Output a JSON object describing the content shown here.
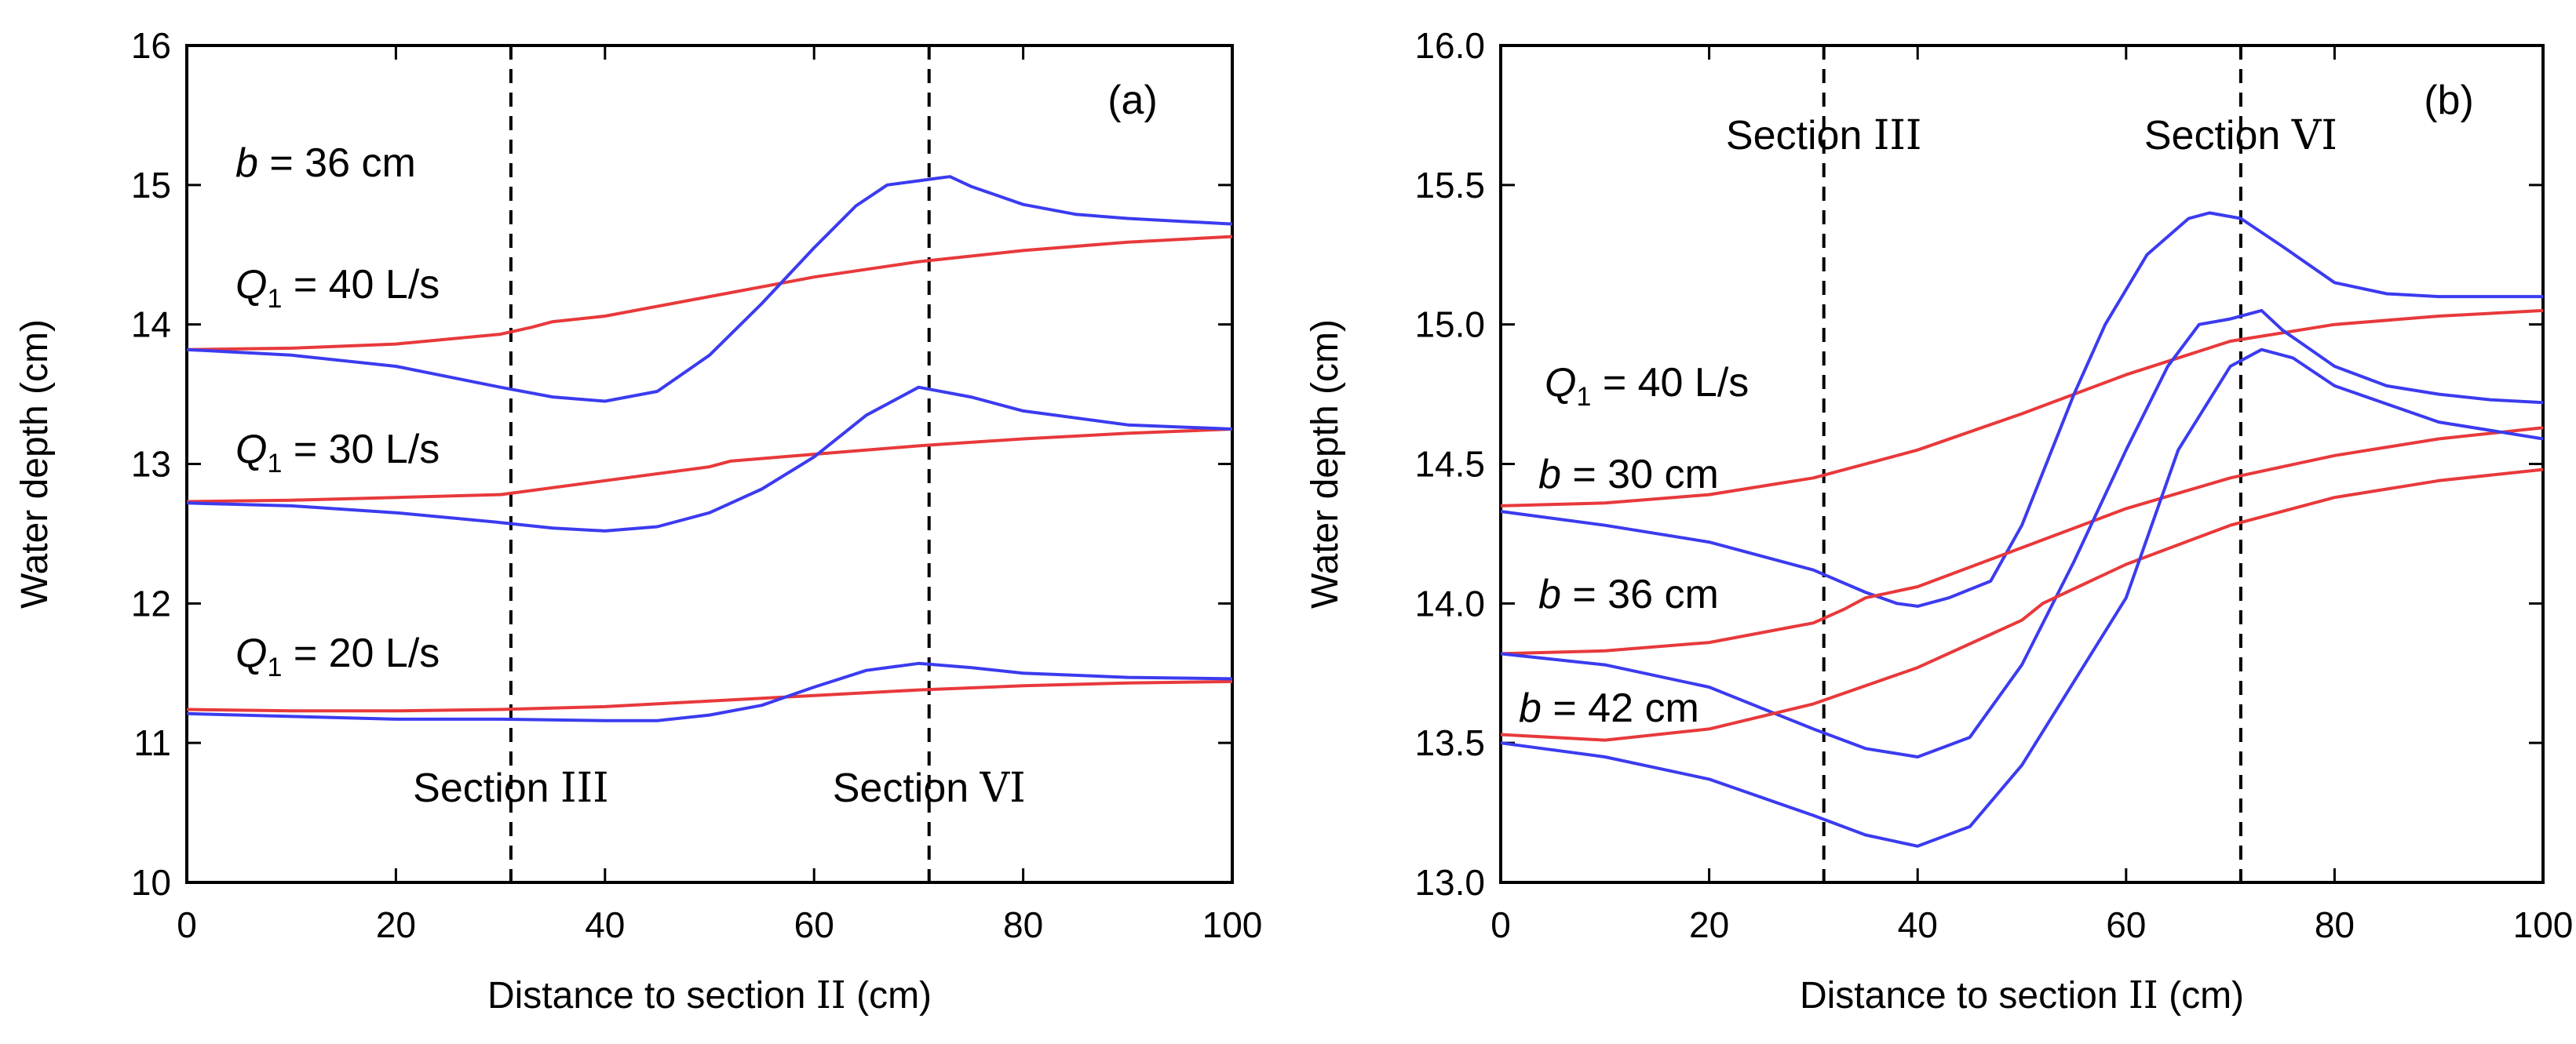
{
  "chart_data": [
    {
      "panel": "a",
      "type": "line",
      "panel_label": "(a)",
      "xlabel_prefix": "Distance to section ",
      "xlabel_roman": "II",
      "xlabel_unit": " (cm)",
      "ylabel": "Water depth (cm)",
      "xlim": [
        0,
        100
      ],
      "ylim": [
        10,
        16
      ],
      "xticks": [
        0,
        20,
        40,
        60,
        80,
        100
      ],
      "yticks": [
        10,
        11,
        12,
        13,
        14,
        15,
        16
      ],
      "ytick_decimals": 0,
      "vlines": [
        {
          "x": 31,
          "label_prefix": "Section ",
          "label_roman": "III"
        },
        {
          "x": 71,
          "label_prefix": "Section ",
          "label_roman": "VI"
        }
      ],
      "annotations": [
        {
          "var": "b",
          "sub": "",
          "text": " = 36 cm"
        },
        {
          "var": "Q",
          "sub": "1",
          "text": " = 40 L/s"
        },
        {
          "var": "Q",
          "sub": "1",
          "text": " = 30 L/s"
        },
        {
          "var": "Q",
          "sub": "1",
          "text": " = 20 L/s"
        }
      ],
      "series": [
        {
          "name": "red Q1=40",
          "color": "#e8393b",
          "points": [
            [
              0,
              13.82
            ],
            [
              10,
              13.83
            ],
            [
              20,
              13.86
            ],
            [
              30,
              13.93
            ],
            [
              33,
              13.98
            ],
            [
              35,
              14.02
            ],
            [
              40,
              14.06
            ],
            [
              50,
              14.2
            ],
            [
              60,
              14.34
            ],
            [
              70,
              14.45
            ],
            [
              80,
              14.53
            ],
            [
              90,
              14.59
            ],
            [
              100,
              14.63
            ]
          ]
        },
        {
          "name": "blue Q1=40",
          "color": "#3b3bf0",
          "points": [
            [
              0,
              13.82
            ],
            [
              10,
              13.78
            ],
            [
              20,
              13.7
            ],
            [
              30,
              13.55
            ],
            [
              35,
              13.48
            ],
            [
              40,
              13.45
            ],
            [
              45,
              13.52
            ],
            [
              50,
              13.78
            ],
            [
              55,
              14.15
            ],
            [
              60,
              14.55
            ],
            [
              64,
              14.85
            ],
            [
              67,
              15.0
            ],
            [
              70,
              15.03
            ],
            [
              72,
              15.05
            ],
            [
              73,
              15.06
            ],
            [
              75,
              14.99
            ],
            [
              80,
              14.86
            ],
            [
              85,
              14.79
            ],
            [
              90,
              14.76
            ],
            [
              95,
              14.74
            ],
            [
              100,
              14.72
            ]
          ]
        },
        {
          "name": "red Q1=30",
          "color": "#e8393b",
          "points": [
            [
              0,
              12.73
            ],
            [
              10,
              12.74
            ],
            [
              20,
              12.76
            ],
            [
              30,
              12.78
            ],
            [
              40,
              12.88
            ],
            [
              50,
              12.98
            ],
            [
              52,
              13.02
            ],
            [
              60,
              13.07
            ],
            [
              70,
              13.13
            ],
            [
              80,
              13.18
            ],
            [
              90,
              13.22
            ],
            [
              100,
              13.25
            ]
          ]
        },
        {
          "name": "blue Q1=30",
          "color": "#3b3bf0",
          "points": [
            [
              0,
              12.72
            ],
            [
              10,
              12.7
            ],
            [
              20,
              12.65
            ],
            [
              30,
              12.58
            ],
            [
              35,
              12.54
            ],
            [
              40,
              12.52
            ],
            [
              45,
              12.55
            ],
            [
              50,
              12.65
            ],
            [
              55,
              12.82
            ],
            [
              60,
              13.05
            ],
            [
              65,
              13.35
            ],
            [
              70,
              13.55
            ],
            [
              75,
              13.48
            ],
            [
              80,
              13.38
            ],
            [
              90,
              13.28
            ],
            [
              100,
              13.25
            ]
          ]
        },
        {
          "name": "red Q1=20",
          "color": "#e8393b",
          "points": [
            [
              0,
              11.24
            ],
            [
              10,
              11.23
            ],
            [
              20,
              11.23
            ],
            [
              30,
              11.24
            ],
            [
              40,
              11.26
            ],
            [
              50,
              11.3
            ],
            [
              60,
              11.34
            ],
            [
              70,
              11.38
            ],
            [
              80,
              11.41
            ],
            [
              90,
              11.43
            ],
            [
              100,
              11.44
            ]
          ]
        },
        {
          "name": "blue Q1=20",
          "color": "#3b3bf0",
          "points": [
            [
              0,
              11.21
            ],
            [
              10,
              11.19
            ],
            [
              20,
              11.17
            ],
            [
              30,
              11.17
            ],
            [
              40,
              11.16
            ],
            [
              45,
              11.16
            ],
            [
              50,
              11.2
            ],
            [
              55,
              11.27
            ],
            [
              60,
              11.4
            ],
            [
              65,
              11.52
            ],
            [
              70,
              11.57
            ],
            [
              75,
              11.54
            ],
            [
              80,
              11.5
            ],
            [
              90,
              11.47
            ],
            [
              100,
              11.46
            ]
          ]
        }
      ]
    },
    {
      "panel": "b",
      "type": "line",
      "panel_label": "(b)",
      "xlabel_prefix": "Distance to section ",
      "xlabel_roman": "II",
      "xlabel_unit": " (cm)",
      "ylabel": "Water depth (cm)",
      "xlim": [
        0,
        100
      ],
      "ylim": [
        13.0,
        16.0
      ],
      "xticks": [
        0,
        20,
        40,
        60,
        80,
        100
      ],
      "yticks": [
        13.0,
        13.5,
        14.0,
        14.5,
        15.0,
        15.5,
        16.0
      ],
      "ytick_decimals": 1,
      "vlines": [
        {
          "x": 31,
          "label_prefix": "Section ",
          "label_roman": "III"
        },
        {
          "x": 71,
          "label_prefix": "Section ",
          "label_roman": "VI"
        }
      ],
      "annotations": [
        {
          "var": "Q",
          "sub": "1",
          "text": " = 40 L/s"
        },
        {
          "var": "b",
          "sub": "",
          "text": " = 30 cm"
        },
        {
          "var": "b",
          "sub": "",
          "text": " = 36 cm"
        },
        {
          "var": "b",
          "sub": "",
          "text": " = 42 cm"
        }
      ],
      "series": [
        {
          "name": "red b=30",
          "color": "#e8393b",
          "points": [
            [
              0,
              14.35
            ],
            [
              10,
              14.36
            ],
            [
              20,
              14.39
            ],
            [
              30,
              14.45
            ],
            [
              40,
              14.55
            ],
            [
              50,
              14.68
            ],
            [
              60,
              14.82
            ],
            [
              70,
              14.94
            ],
            [
              80,
              15.0
            ],
            [
              90,
              15.03
            ],
            [
              100,
              15.05
            ]
          ]
        },
        {
          "name": "blue b=30",
          "color": "#3b3bf0",
          "points": [
            [
              0,
              14.33
            ],
            [
              10,
              14.28
            ],
            [
              20,
              14.22
            ],
            [
              30,
              14.12
            ],
            [
              35,
              14.04
            ],
            [
              38,
              14.0
            ],
            [
              40,
              13.99
            ],
            [
              43,
              14.02
            ],
            [
              47,
              14.08
            ],
            [
              50,
              14.28
            ],
            [
              55,
              14.75
            ],
            [
              58,
              15.0
            ],
            [
              62,
              15.25
            ],
            [
              66,
              15.38
            ],
            [
              68,
              15.4
            ],
            [
              71,
              15.38
            ],
            [
              75,
              15.28
            ],
            [
              80,
              15.15
            ],
            [
              85,
              15.11
            ],
            [
              90,
              15.1
            ],
            [
              100,
              15.1
            ]
          ]
        },
        {
          "name": "red b=36",
          "color": "#e8393b",
          "points": [
            [
              0,
              13.82
            ],
            [
              10,
              13.83
            ],
            [
              20,
              13.86
            ],
            [
              30,
              13.93
            ],
            [
              33,
              13.98
            ],
            [
              35,
              14.02
            ],
            [
              40,
              14.06
            ],
            [
              50,
              14.2
            ],
            [
              60,
              14.34
            ],
            [
              70,
              14.45
            ],
            [
              80,
              14.53
            ],
            [
              90,
              14.59
            ],
            [
              100,
              14.63
            ]
          ]
        },
        {
          "name": "blue b=36",
          "color": "#3b3bf0",
          "points": [
            [
              0,
              13.82
            ],
            [
              10,
              13.78
            ],
            [
              20,
              13.7
            ],
            [
              30,
              13.55
            ],
            [
              35,
              13.48
            ],
            [
              40,
              13.45
            ],
            [
              45,
              13.52
            ],
            [
              50,
              13.78
            ],
            [
              55,
              14.15
            ],
            [
              60,
              14.55
            ],
            [
              64,
              14.85
            ],
            [
              67,
              15.0
            ],
            [
              70,
              15.02
            ],
            [
              72,
              15.04
            ],
            [
              73,
              15.05
            ],
            [
              75,
              14.98
            ],
            [
              80,
              14.85
            ],
            [
              85,
              14.78
            ],
            [
              90,
              14.75
            ],
            [
              95,
              14.73
            ],
            [
              100,
              14.72
            ]
          ]
        },
        {
          "name": "red b=42",
          "color": "#e8393b",
          "points": [
            [
              0,
              13.53
            ],
            [
              10,
              13.51
            ],
            [
              20,
              13.55
            ],
            [
              30,
              13.64
            ],
            [
              40,
              13.77
            ],
            [
              50,
              13.94
            ],
            [
              52,
              14.0
            ],
            [
              60,
              14.14
            ],
            [
              70,
              14.28
            ],
            [
              80,
              14.38
            ],
            [
              90,
              14.44
            ],
            [
              100,
              14.48
            ]
          ]
        },
        {
          "name": "blue b=42",
          "color": "#3b3bf0",
          "points": [
            [
              0,
              13.5
            ],
            [
              10,
              13.45
            ],
            [
              20,
              13.37
            ],
            [
              30,
              13.24
            ],
            [
              35,
              13.17
            ],
            [
              40,
              13.13
            ],
            [
              45,
              13.2
            ],
            [
              50,
              13.42
            ],
            [
              55,
              13.72
            ],
            [
              60,
              14.02
            ],
            [
              65,
              14.55
            ],
            [
              70,
              14.85
            ],
            [
              73,
              14.91
            ],
            [
              76,
              14.88
            ],
            [
              80,
              14.78
            ],
            [
              90,
              14.65
            ],
            [
              100,
              14.59
            ]
          ]
        }
      ]
    }
  ]
}
